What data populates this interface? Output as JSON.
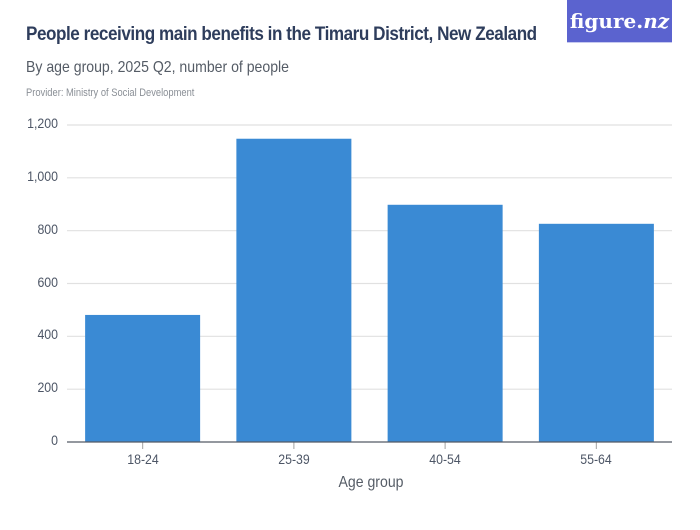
{
  "header": {
    "title": "People receiving main benefits in the Timaru District, New Zealand",
    "subtitle": "By age group, 2025 Q2, number of people",
    "provider": "Provider: Ministry of Social Development",
    "logo_text": "figure.",
    "logo_suffix": "nz",
    "logo_bg": "#5b63cf"
  },
  "chart_data": {
    "type": "bar",
    "title": "People receiving main benefits in the Timaru District, New Zealand",
    "subtitle": "By age group, 2025 Q2, number of people",
    "categories": [
      "18-24",
      "25-39",
      "40-54",
      "55-64"
    ],
    "values": [
      481,
      1148,
      898,
      826
    ],
    "xlabel": "Age group",
    "ylabel": "",
    "ylim": [
      0,
      1200
    ],
    "yticks": [
      0,
      200,
      400,
      600,
      800,
      1000,
      1200
    ],
    "ytick_labels": [
      "0",
      "200",
      "400",
      "600",
      "800",
      "1,000",
      "1,200"
    ],
    "grid": true,
    "legend": "none",
    "bar_color": "#3a8ad4"
  }
}
